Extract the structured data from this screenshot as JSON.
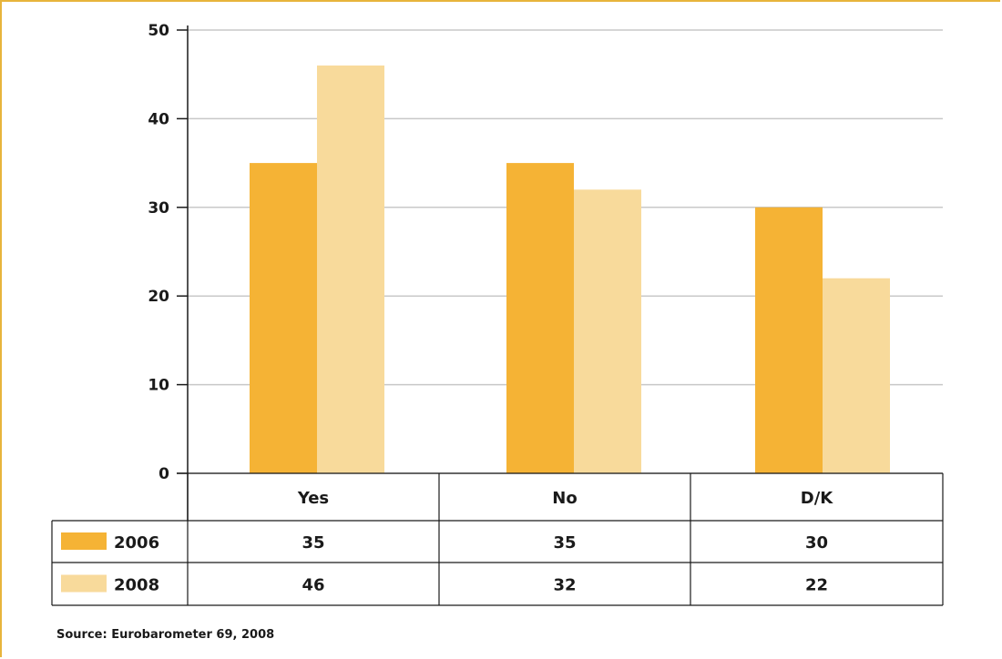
{
  "chart_data": {
    "type": "bar",
    "categories": [
      "Yes",
      "No",
      "D/K"
    ],
    "series": [
      {
        "name": "2006",
        "values": [
          35,
          35,
          30
        ],
        "color": "#f5b335"
      },
      {
        "name": "2008",
        "values": [
          46,
          32,
          22
        ],
        "color": "#f8da9b"
      }
    ],
    "ylim": [
      0,
      50
    ],
    "yticks": [
      "0",
      "10",
      "20",
      "30",
      "40",
      "50"
    ],
    "grid": true,
    "data_table": {
      "rows": [
        {
          "label": "2006",
          "cells": [
            "35",
            "35",
            "30"
          ]
        },
        {
          "label": "2008",
          "cells": [
            "46",
            "32",
            "22"
          ]
        }
      ]
    }
  },
  "source": "Source: Eurobarometer 69, 2008"
}
